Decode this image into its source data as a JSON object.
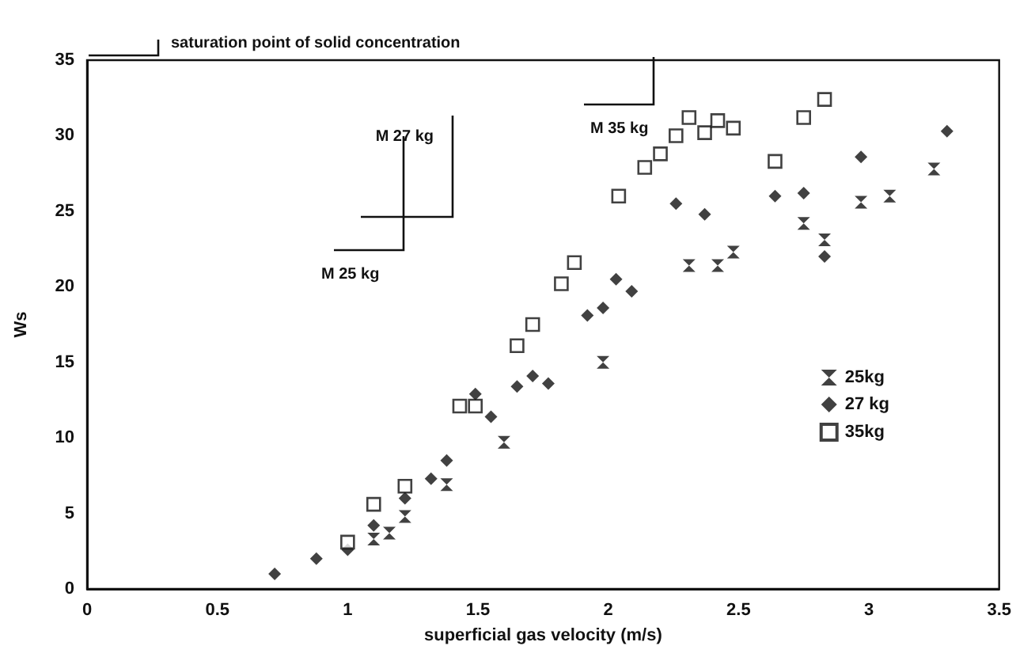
{
  "chart_data": {
    "type": "scatter",
    "xlabel": "superficial gas velocity (m/s)",
    "ylabel": "Ws",
    "xlim": [
      0,
      3.5
    ],
    "xticks": [
      0,
      0.5,
      1,
      1.5,
      2,
      2.5,
      3,
      3.5
    ],
    "ylim": [
      0,
      35
    ],
    "yticks": [
      0,
      5,
      10,
      15,
      20,
      25,
      30,
      35
    ],
    "grid": false,
    "legend": "right",
    "annotations": [
      "saturation point of solid concentration",
      "M 35 kg",
      "M 27 kg",
      "M 25 kg"
    ],
    "series": [
      {
        "name": "25kg",
        "color": "#111111",
        "marker": "cross",
        "x": [
          1.1,
          1.16,
          1.22,
          1.38,
          1.6,
          1.98,
          2.31,
          2.42,
          2.48,
          2.75,
          2.83,
          2.97,
          3.08,
          3.25
        ],
        "values": [
          3.3,
          3.7,
          4.8,
          6.9,
          9.7,
          15.0,
          21.4,
          21.4,
          22.3,
          24.2,
          23.1,
          25.6,
          26.0,
          27.8
        ]
      },
      {
        "name": "27 kg",
        "color": "#111111",
        "marker": "diamond",
        "x": [
          0.72,
          0.88,
          1.0,
          1.1,
          1.22,
          1.32,
          1.38,
          1.49,
          1.55,
          1.65,
          1.71,
          1.77,
          1.92,
          1.98,
          2.03,
          2.09,
          2.26,
          2.37,
          2.64,
          2.75,
          2.83,
          2.97,
          3.3
        ],
        "values": [
          1.0,
          2.0,
          2.6,
          4.2,
          6.0,
          7.3,
          8.5,
          12.9,
          11.4,
          13.4,
          14.1,
          13.6,
          18.1,
          18.6,
          20.5,
          19.7,
          25.5,
          24.8,
          26.0,
          26.2,
          22.0,
          28.6,
          30.3
        ]
      },
      {
        "name": "35kg",
        "color": "#111111",
        "marker": "square",
        "x": [
          1.0,
          1.1,
          1.22,
          1.43,
          1.49,
          1.65,
          1.71,
          1.82,
          1.87,
          2.04,
          2.14,
          2.2,
          2.26,
          2.31,
          2.37,
          2.42,
          2.48,
          2.64,
          2.75,
          2.83
        ],
        "values": [
          3.1,
          5.6,
          6.8,
          12.1,
          12.1,
          16.1,
          17.5,
          20.2,
          21.6,
          26.0,
          27.9,
          28.8,
          30.0,
          31.2,
          30.2,
          31.0,
          30.5,
          28.3,
          31.2,
          32.4
        ]
      }
    ]
  }
}
